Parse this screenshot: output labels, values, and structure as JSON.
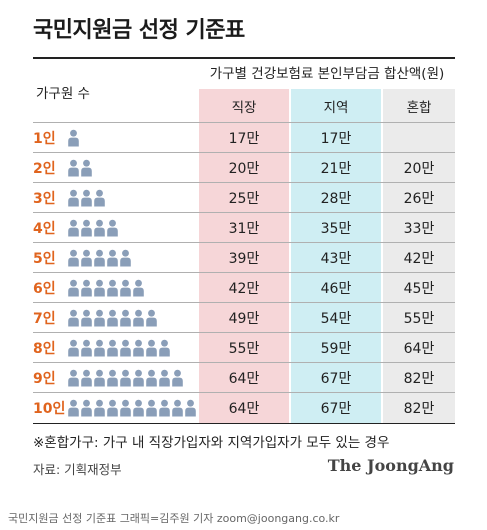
{
  "title": "국민지원금 선정 기준표",
  "header": {
    "group": "가구별 건강보험료 본인부담금 합산액(원)",
    "household": "가구원 수",
    "columns": [
      "직장",
      "지역",
      "혼합"
    ]
  },
  "rows": [
    {
      "label": "1인",
      "people": 1,
      "values": [
        "17만",
        "17만",
        ""
      ]
    },
    {
      "label": "2인",
      "people": 2,
      "values": [
        "20만",
        "21만",
        "20만"
      ]
    },
    {
      "label": "3인",
      "people": 3,
      "values": [
        "25만",
        "28만",
        "26만"
      ]
    },
    {
      "label": "4인",
      "people": 4,
      "values": [
        "31만",
        "35만",
        "33만"
      ]
    },
    {
      "label": "5인",
      "people": 5,
      "values": [
        "39만",
        "43만",
        "42만"
      ]
    },
    {
      "label": "6인",
      "people": 6,
      "values": [
        "42만",
        "46만",
        "45만"
      ]
    },
    {
      "label": "7인",
      "people": 7,
      "values": [
        "49만",
        "54만",
        "55만"
      ]
    },
    {
      "label": "8인",
      "people": 8,
      "values": [
        "55만",
        "59만",
        "64만"
      ]
    },
    {
      "label": "9인",
      "people": 9,
      "values": [
        "64만",
        "67만",
        "82만"
      ]
    },
    {
      "label": "10인",
      "people": 10,
      "values": [
        "64만",
        "67만",
        "82만"
      ]
    }
  ],
  "note": "※혼합가구: 가구 내 직장가입자와 지역가입자가 모두 있는 경우",
  "source": "자료: 기획재정부",
  "brand": "The JoongAng",
  "caption": "국민지원금 선정 기준표 그래픽=김주원 기자 zoom@joongang.co.kr",
  "colors": {
    "accent": "#e0641e",
    "col1": "#f6d6d8",
    "col2": "#cfeef3",
    "col3": "#ebebeb",
    "icon": "#8a9eb8"
  }
}
